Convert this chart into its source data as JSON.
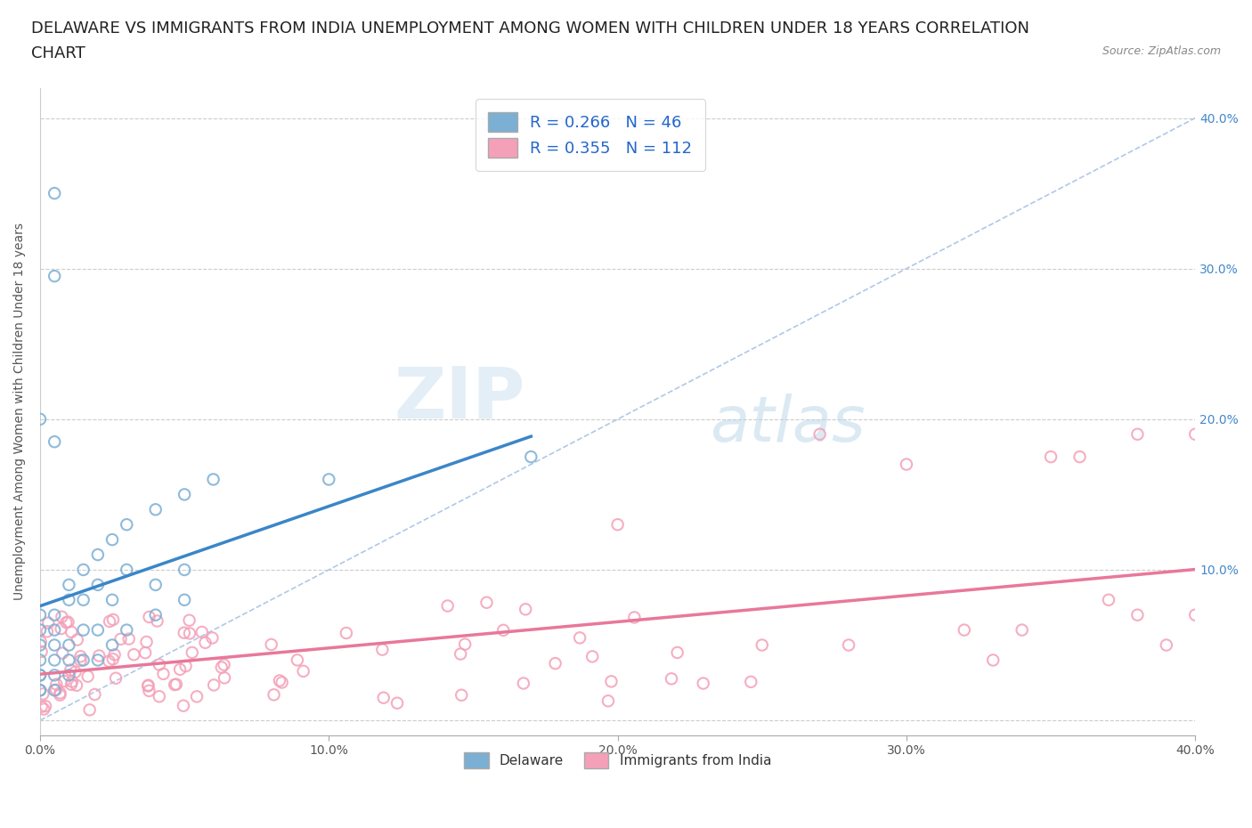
{
  "title_line1": "DELAWARE VS IMMIGRANTS FROM INDIA UNEMPLOYMENT AMONG WOMEN WITH CHILDREN UNDER 18 YEARS CORRELATION",
  "title_line2": "CHART",
  "source_text": "Source: ZipAtlas.com",
  "ylabel": "Unemployment Among Women with Children Under 18 years",
  "xticklabels": [
    "0.0%",
    "",
    "",
    "",
    "",
    "10.0%",
    "",
    "",
    "",
    "",
    "20.0%",
    "",
    "",
    "",
    "",
    "30.0%",
    "",
    "",
    "",
    "",
    "40.0%"
  ],
  "xlim": [
    0.0,
    0.4
  ],
  "ylim": [
    -0.01,
    0.42
  ],
  "legend_label1": "Delaware",
  "legend_label2": "Immigrants from India",
  "delaware_color": "#7bafd4",
  "india_color": "#f4a0b8",
  "trendline_delaware_color": "#3a86c8",
  "trendline_india_color": "#e8789a",
  "diagonal_color": "#b0c8e8",
  "watermark_zip": "ZIP",
  "watermark_atlas": "atlas",
  "title_fontsize": 13,
  "axis_label_fontsize": 10,
  "tick_fontsize": 10,
  "background_color": "#ffffff",
  "ytick_color": "#4488cc",
  "right_ytick_labels": [
    "10.0%",
    "20.0%",
    "30.0%",
    "40.0%"
  ],
  "right_ytick_positions": [
    0.1,
    0.2,
    0.3,
    0.4
  ]
}
